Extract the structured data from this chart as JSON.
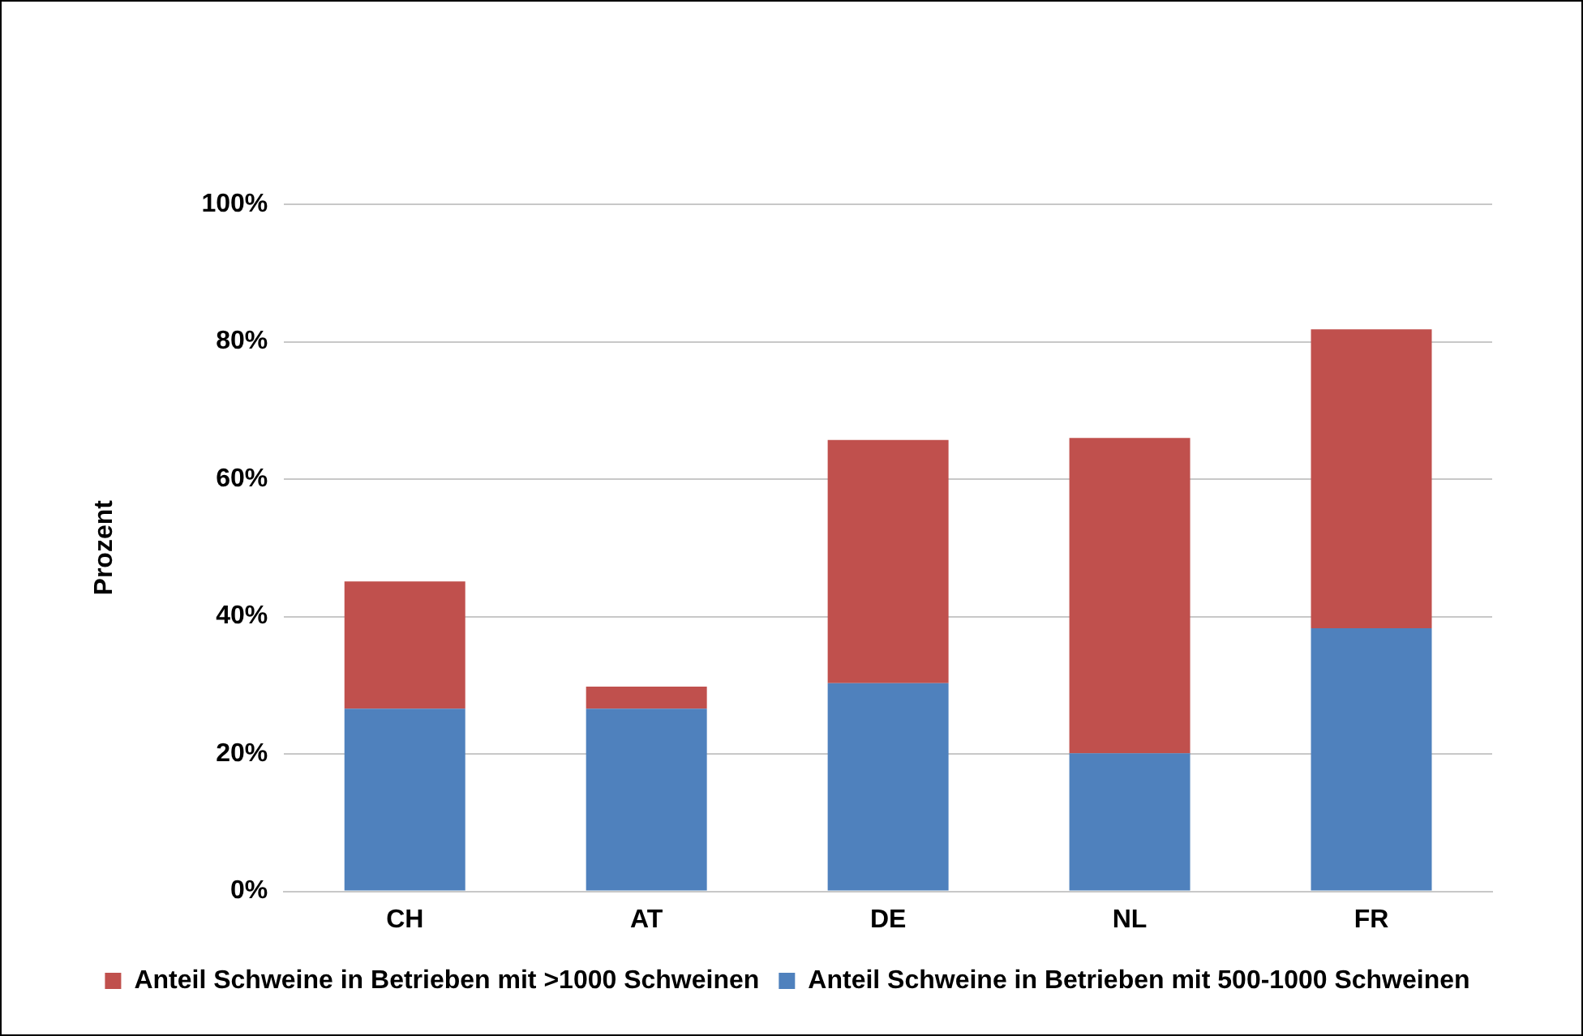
{
  "chart_data": {
    "type": "bar",
    "stacked": true,
    "ylabel": "Prozent",
    "categories": [
      "CH",
      "AT",
      "DE",
      "NL",
      "FR"
    ],
    "series": [
      {
        "name": "Anteil Schweine in Betrieben mit 500-1000 Schweinen",
        "color": "#4f81bd",
        "values": [
          26.6,
          26.6,
          30.3,
          20.1,
          38.3
        ]
      },
      {
        "name": "Anteil Schweine in Betrieben mit >1000 Schweinen",
        "color": "#c0504d",
        "values": [
          18.5,
          3.2,
          35.4,
          45.9,
          43.5
        ]
      }
    ],
    "ylim": [
      0,
      100
    ],
    "yticks": [
      {
        "value": 0,
        "label": "0%"
      },
      {
        "value": 20,
        "label": "20%"
      },
      {
        "value": 40,
        "label": "40%"
      },
      {
        "value": 60,
        "label": "60%"
      },
      {
        "value": 80,
        "label": "80%"
      },
      {
        "value": 100,
        "label": "100%"
      }
    ],
    "grid": "y",
    "legend": "bottom"
  }
}
